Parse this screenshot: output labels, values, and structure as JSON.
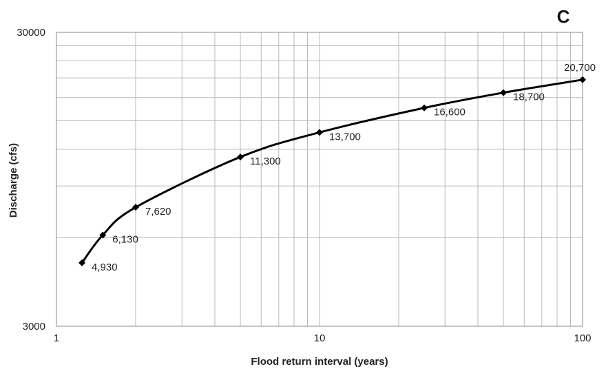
{
  "panel_label": "C",
  "chart_data": {
    "type": "line",
    "xlabel": "Flood return interval (years)",
    "ylabel": "Discharge (cfs)",
    "xscale": "log",
    "yscale": "log",
    "xlim": [
      1,
      100
    ],
    "ylim": [
      3000,
      30000
    ],
    "grid": true,
    "x_ticks": [
      "1",
      "10",
      "100"
    ],
    "y_ticks": [
      "3000",
      "30000"
    ],
    "series": [
      {
        "color": "#000000",
        "marker": "diamond",
        "points": [
          {
            "x": 1.25,
            "y": 4930,
            "label": "4,930"
          },
          {
            "x": 1.5,
            "y": 6130,
            "label": "6,130"
          },
          {
            "x": 2,
            "y": 7620,
            "label": "7,620"
          },
          {
            "x": 5,
            "y": 11300,
            "label": "11,300"
          },
          {
            "x": 10,
            "y": 13700,
            "label": "13,700"
          },
          {
            "x": 25,
            "y": 16600,
            "label": "16,600"
          },
          {
            "x": 50,
            "y": 18700,
            "label": "18,700"
          },
          {
            "x": 100,
            "y": 20700,
            "label": "20,700"
          }
        ]
      }
    ]
  }
}
